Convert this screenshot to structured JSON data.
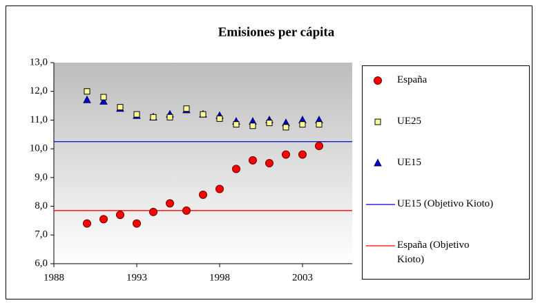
{
  "chart_data": {
    "type": "scatter",
    "title": "Emisiones per cápita",
    "x": [
      1990,
      1991,
      1992,
      1993,
      1994,
      1995,
      1996,
      1997,
      1998,
      1999,
      2000,
      2001,
      2002,
      2003,
      2004
    ],
    "series": [
      {
        "name": "España",
        "color": "#ff0000",
        "marker": "circle",
        "values": [
          7.4,
          7.55,
          7.7,
          7.4,
          7.8,
          8.1,
          7.85,
          8.4,
          8.6,
          9.3,
          9.6,
          9.5,
          9.8,
          9.8,
          10.1
        ]
      },
      {
        "name": "UE25",
        "color": "#ffff99",
        "marker": "square",
        "values": [
          12.0,
          11.8,
          11.45,
          11.2,
          11.1,
          11.1,
          11.4,
          11.2,
          11.05,
          10.85,
          10.8,
          10.9,
          10.75,
          10.85,
          10.85
        ]
      },
      {
        "name": "UE15",
        "color": "#0000cc",
        "marker": "triangle",
        "values": [
          11.7,
          11.65,
          11.4,
          11.15,
          11.1,
          11.2,
          11.35,
          11.2,
          11.15,
          10.95,
          10.95,
          11.0,
          10.9,
          11.0,
          11.0
        ]
      }
    ],
    "reference_lines": [
      {
        "name": "UE15 (Objetivo Kioto)",
        "color": "#0000cc",
        "value": 10.25
      },
      {
        "name": "España (Objetivo Kioto)",
        "color": "#ff0000",
        "value": 7.85
      }
    ],
    "xlim": [
      1988,
      2006
    ],
    "xticks": [
      1988,
      1993,
      1998,
      2003
    ],
    "ylim": [
      6,
      13
    ],
    "yticks": [
      {
        "value": 6,
        "label": "6,0"
      },
      {
        "value": 7,
        "label": "7,0"
      },
      {
        "value": 8,
        "label": "8,0"
      },
      {
        "value": 9,
        "label": "9,0"
      },
      {
        "value": 10,
        "label": "10,0"
      },
      {
        "value": 11,
        "label": "11,0"
      },
      {
        "value": 12,
        "label": "12,0"
      },
      {
        "value": 13,
        "label": "13,0"
      }
    ]
  }
}
